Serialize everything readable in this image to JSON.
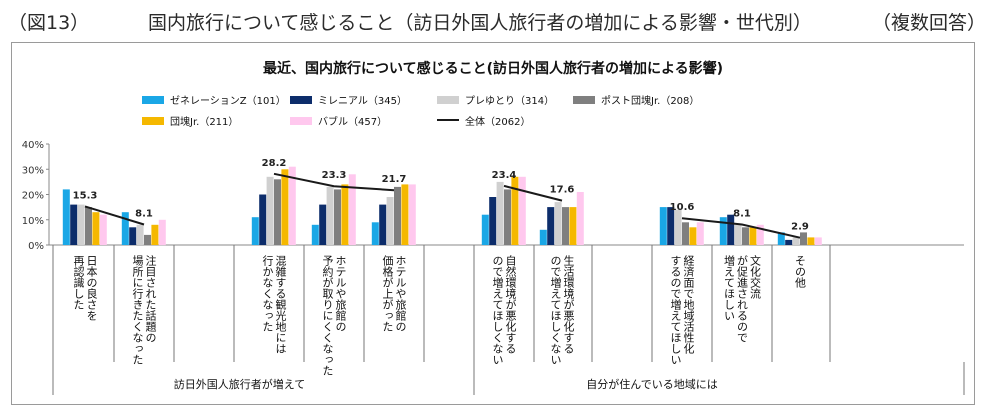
{
  "heading": {
    "figure_label": "（図13）",
    "title": "国内旅行について感じること（訪日外国人旅行者の増加による影響・世代別）",
    "note": "（複数回答）"
  },
  "chart_data": {
    "type": "bar",
    "title": "最近、国内旅行について感じること(訪日外国人旅行者の増加による影響)",
    "xlabel": "",
    "ylabel": "",
    "ylim": [
      0,
      40
    ],
    "yticks": [
      "0%",
      "10%",
      "20%",
      "30%",
      "40%"
    ],
    "grid": false,
    "legend_position": "top",
    "categories": [
      "日本の良さを\n再認識した",
      "注目された話題の\n場所に行きたくなった",
      "混雑する観光地には\n行かなくなった",
      "ホテルや旅館の\n予約が取りにくくなった",
      "ホテルや旅館の\n価格が上がった",
      "自然環境が悪化する\nので増えてほしくない",
      "生活環境が悪化する\nので増えてほしくない",
      "経済面で地域活性化\nするので増えてほしい",
      "文化交流\nが促進されるので\n増えてほしい",
      "その他"
    ],
    "groups": [
      {
        "label": "訪日外国人旅行者が増えて",
        "from": 0,
        "to": 4
      },
      {
        "label": "自分が住んでいる地域には",
        "from": 5,
        "to": 9
      }
    ],
    "series": [
      {
        "name": "ゼネレーションZ（101）",
        "color": "#1aa7e6",
        "values": [
          22,
          13,
          11,
          8,
          9,
          12,
          6,
          15,
          11,
          5
        ]
      },
      {
        "name": "ミレニアル（345）",
        "color": "#0d2d6b",
        "values": [
          16,
          7,
          20,
          16,
          16,
          19,
          15,
          15,
          12,
          2
        ]
      },
      {
        "name": "プレゆとり（314）",
        "color": "#d0d0d0",
        "values": [
          16,
          8,
          27,
          23,
          19,
          25,
          17,
          14,
          8,
          3
        ]
      },
      {
        "name": "ポスト団塊Jr.（208）",
        "color": "#7f7f7f",
        "values": [
          15,
          4,
          26,
          22,
          23,
          22,
          15,
          9,
          7,
          5
        ]
      },
      {
        "name": "団塊Jr.（211）",
        "color": "#f5b800",
        "values": [
          13,
          8,
          30,
          24,
          24,
          27,
          15,
          7,
          7,
          3
        ]
      },
      {
        "name": "バブル（457）",
        "color": "#ffc8ee",
        "values": [
          12,
          10,
          31,
          28,
          24,
          27,
          21,
          9,
          8,
          3
        ]
      }
    ],
    "total": {
      "name": "全体（2062）",
      "color": "#1a1a1a",
      "values": [
        15.3,
        8.1,
        28.2,
        23.3,
        21.7,
        23.4,
        17.6,
        10.6,
        8.1,
        2.9
      ],
      "labels": [
        "15.3",
        "8.1",
        "28.2",
        "23.3",
        "21.7",
        "23.4",
        "17.6",
        "10.6",
        "8.1",
        "2.9"
      ]
    }
  }
}
